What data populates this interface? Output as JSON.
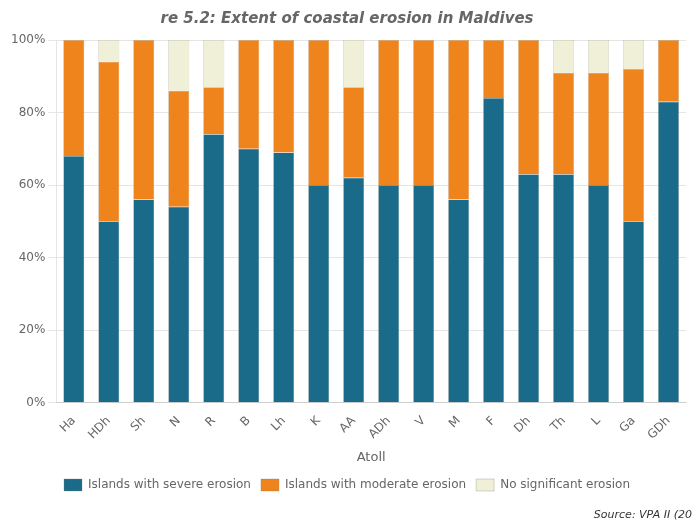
{
  "chart_data": {
    "type": "bar",
    "title": "re 5.2: Extent of coastal erosion in Maldives",
    "x_label": "Atoll",
    "categories": [
      "Ha",
      "HDh",
      "Sh",
      "N",
      "R",
      "B",
      "Lh",
      "K",
      "AA",
      "ADh",
      "V",
      "M",
      "F",
      "Dh",
      "Th",
      "L",
      "Ga",
      "GDh"
    ],
    "series": [
      {
        "name": "Islands with severe erosion",
        "color": "#1a6b8a",
        "values": [
          68,
          50,
          56,
          54,
          74,
          70,
          69,
          60,
          62,
          60,
          60,
          56,
          84,
          63,
          63,
          60,
          50,
          83
        ]
      },
      {
        "name": "Islands with moderate erosion",
        "color": "#f0841c",
        "values": [
          32,
          44,
          44,
          32,
          13,
          30,
          31,
          40,
          25,
          40,
          40,
          44,
          16,
          37,
          28,
          31,
          42,
          17
        ]
      },
      {
        "name": "No significant erosion",
        "color": "#f0f0d8",
        "values": [
          0,
          6,
          0,
          14,
          13,
          0,
          0,
          0,
          13,
          0,
          0,
          0,
          0,
          0,
          9,
          9,
          8,
          0
        ]
      }
    ],
    "stacked": true,
    "ylim": [
      0,
      100
    ],
    "yticks": [
      {
        "value": 0,
        "label": "0%"
      },
      {
        "value": 20,
        "label": "20%"
      },
      {
        "value": 40,
        "label": "40%"
      },
      {
        "value": 60,
        "label": "60%"
      },
      {
        "value": 80,
        "label": "80%"
      },
      {
        "value": 100,
        "label": "100%"
      }
    ],
    "grid": true,
    "legend": "bottom",
    "annotations": [
      "Source: VPA II (20"
    ]
  }
}
